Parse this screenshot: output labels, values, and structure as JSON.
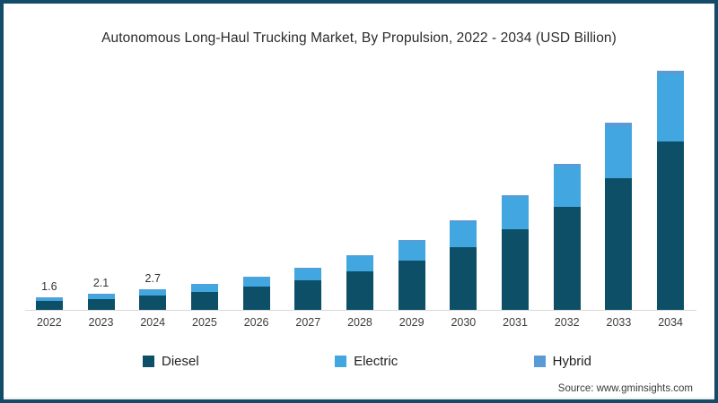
{
  "source": {
    "text": "Source: www.gminsights.com"
  },
  "colors": {
    "frame_border": "#134b68",
    "diesel": "#0d4f66",
    "electric": "#42a6e0",
    "hybrid": "#5b9bd5",
    "axis_line": "#d9d9d9"
  },
  "chart_data": {
    "type": "bar",
    "stacked": true,
    "title": "Autonomous Long-Haul Trucking Market, By Propulsion, 2022 - 2034 (USD Billion)",
    "xlabel": "",
    "ylabel": "USD Billion",
    "ylim": [
      0,
      32
    ],
    "grid": false,
    "legend_position": "bottom",
    "categories": [
      "2022",
      "2023",
      "2024",
      "2025",
      "2026",
      "2027",
      "2028",
      "2029",
      "2030",
      "2031",
      "2032",
      "2033",
      "2034"
    ],
    "series": [
      {
        "name": "Diesel",
        "color": "#0d4f66",
        "values": [
          1.13,
          1.48,
          1.9,
          2.4,
          3.1,
          3.95,
          5.07,
          6.48,
          8.31,
          10.63,
          13.59,
          17.39,
          22.25
        ]
      },
      {
        "name": "Electric",
        "color": "#42a6e0",
        "values": [
          0.44,
          0.58,
          0.75,
          0.94,
          1.22,
          1.55,
          2.01,
          2.57,
          3.3,
          4.23,
          5.4,
          6.92,
          8.85
        ]
      },
      {
        "name": "Hybrid",
        "color": "#5b9bd5",
        "values": [
          0.03,
          0.04,
          0.05,
          0.06,
          0.08,
          0.1,
          0.12,
          0.15,
          0.19,
          0.24,
          0.31,
          0.39,
          0.5
        ]
      }
    ],
    "totals": [
      1.6,
      2.1,
      2.7,
      3.4,
      4.4,
      5.6,
      7.2,
      9.2,
      11.8,
      15.1,
      19.3,
      24.7,
      31.6
    ],
    "data_labels": [
      "1.6",
      "2.1",
      "2.7",
      null,
      null,
      null,
      null,
      null,
      null,
      null,
      null,
      null,
      null
    ]
  }
}
